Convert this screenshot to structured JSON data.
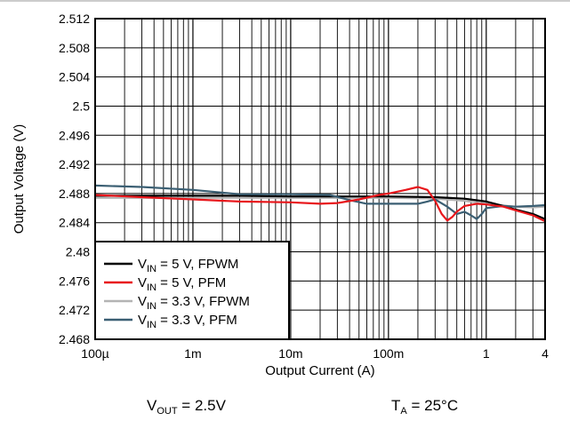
{
  "chart_data": {
    "type": "line",
    "xlabel": "Output Current (A)",
    "ylabel": "Output Voltage (V)",
    "xscale": "log",
    "xlim": [
      0.0001,
      4
    ],
    "ylim": [
      2.468,
      2.512
    ],
    "grid": true,
    "legend_position": "bottom-left",
    "x_ticks": [
      0.0001,
      0.001,
      0.01,
      0.1,
      1,
      4
    ],
    "x_tick_labels": [
      "100µ",
      "1m",
      "10m",
      "100m",
      "1",
      "4"
    ],
    "y_ticks": [
      2.468,
      2.472,
      2.476,
      2.48,
      2.484,
      2.488,
      2.492,
      2.496,
      2.5,
      2.504,
      2.508,
      2.512
    ],
    "y_tick_labels": [
      "2.468",
      "2.472",
      "2.476",
      "2.48",
      "2.484",
      "2.488",
      "2.492",
      "2.496",
      "2.5",
      "2.504",
      "2.508",
      "2.512"
    ],
    "series": [
      {
        "name": "V_IN = 5 V, FPWM",
        "label_main": "V",
        "label_sub": "IN",
        "label_rest": " = 5 V, FPWM",
        "color": "#000000",
        "x": [
          0.0001,
          0.0003,
          0.001,
          0.003,
          0.01,
          0.03,
          0.1,
          0.3,
          0.6,
          1,
          1.5,
          2,
          3,
          4
        ],
        "y": [
          2.4877,
          2.4877,
          2.4877,
          2.4877,
          2.4876,
          2.4876,
          2.4876,
          2.4875,
          2.4873,
          2.4869,
          2.4863,
          2.4858,
          2.4852,
          2.4845
        ]
      },
      {
        "name": "V_IN = 5 V, PFM",
        "label_main": "V",
        "label_sub": "IN",
        "label_rest": " = 5 V, PFM",
        "color": "#e8161b",
        "x": [
          0.0001,
          0.0003,
          0.001,
          0.003,
          0.01,
          0.02,
          0.03,
          0.05,
          0.08,
          0.1,
          0.15,
          0.2,
          0.25,
          0.3,
          0.35,
          0.4,
          0.45,
          0.5,
          0.6,
          0.8,
          1,
          1.5,
          2,
          3,
          4
        ],
        "y": [
          2.4878,
          2.4875,
          2.4872,
          2.4869,
          2.4868,
          2.4866,
          2.4867,
          2.4872,
          2.4878,
          2.488,
          2.4885,
          2.4889,
          2.4885,
          2.487,
          2.4852,
          2.4843,
          2.4848,
          2.4855,
          2.4863,
          2.4866,
          2.4865,
          2.4862,
          2.4857,
          2.485,
          2.4842
        ]
      },
      {
        "name": "V_IN = 3.3 V, FPWM",
        "label_main": "V",
        "label_sub": "IN",
        "label_rest": " = 3.3 V, FPWM",
        "color": "#b4b4b4",
        "x": [
          0.0001,
          0.0003,
          0.001,
          0.003,
          0.01,
          0.03,
          0.1,
          0.3,
          0.6,
          1,
          2,
          3,
          4
        ],
        "y": [
          2.4874,
          2.4874,
          2.4874,
          2.4874,
          2.4874,
          2.4874,
          2.4874,
          2.4873,
          2.487,
          2.4866,
          2.4862,
          2.4861,
          2.4862
        ]
      },
      {
        "name": "V_IN = 3.3 V, PFM",
        "label_main": "V",
        "label_sub": "IN",
        "label_rest": " = 3.3 V, PFM",
        "color": "#3b5f73",
        "x": [
          0.0001,
          0.0003,
          0.001,
          0.003,
          0.01,
          0.025,
          0.04,
          0.06,
          0.1,
          0.2,
          0.25,
          0.3,
          0.4,
          0.5,
          0.6,
          0.7,
          0.8,
          0.9,
          1,
          1.5,
          2,
          3,
          4
        ],
        "y": [
          2.4891,
          2.4889,
          2.4885,
          2.4879,
          2.4879,
          2.4878,
          2.4871,
          2.4866,
          2.4866,
          2.4866,
          2.4869,
          2.4872,
          2.4862,
          2.4852,
          2.4855,
          2.485,
          2.4845,
          2.4852,
          2.486,
          2.4863,
          2.4862,
          2.4863,
          2.4864
        ]
      }
    ]
  },
  "conditions": {
    "vout_main": "V",
    "vout_sub": "OUT",
    "vout_rest": " = 2.5V",
    "ta_main": "T",
    "ta_sub": "A",
    "ta_rest": " = 25°C"
  }
}
